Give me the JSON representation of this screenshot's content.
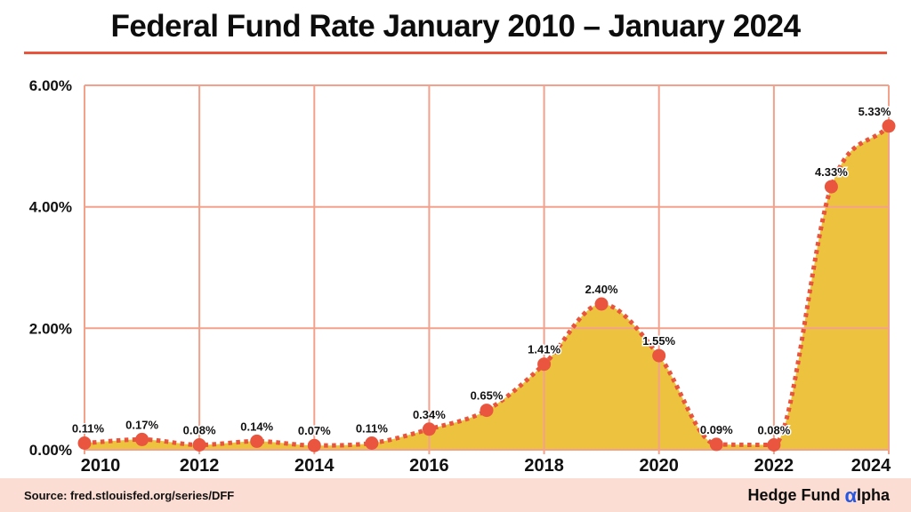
{
  "page": {
    "title": "Federal Fund Rate January 2010 – January 2024"
  },
  "footer": {
    "source": "Source: fred.stlouisfed.org/series/DFF",
    "logo_prefix": "Hedge Fund",
    "logo_alpha": "α",
    "logo_suffix": "lpha"
  },
  "colors": {
    "accent": "#E8543C",
    "marker": "#E9553E",
    "area_fill": "#ECC23E",
    "grid": "#F4A18C",
    "footer_bg": "#FBDDD3",
    "alpha_blue": "#2757E0",
    "text": "#111111"
  },
  "chart_data": {
    "type": "area",
    "title": "Federal Fund Rate January 2010 – January 2024",
    "x": [
      2010,
      2011,
      2012,
      2013,
      2014,
      2015,
      2016,
      2017,
      2018,
      2019,
      2020,
      2021,
      2022,
      2023,
      2024
    ],
    "values": [
      0.11,
      0.17,
      0.08,
      0.14,
      0.07,
      0.11,
      0.34,
      0.65,
      1.41,
      2.4,
      1.55,
      0.09,
      0.08,
      4.33,
      5.33
    ],
    "point_labels": [
      "0.11%",
      "0.17%",
      "0.08%",
      "0.14%",
      "0.07%",
      "0.11%",
      "0.34%",
      "0.65%",
      "1.41%",
      "2.40%",
      "1.55%",
      "0.09%",
      "0.08%",
      "4.33%",
      "5.33%"
    ],
    "x_ticks": [
      2010,
      2012,
      2014,
      2016,
      2018,
      2020,
      2022,
      2024
    ],
    "y_ticks": [
      {
        "value": 6,
        "label": "6.00%"
      },
      {
        "value": 4,
        "label": "4.00%"
      },
      {
        "value": 2,
        "label": "2.00%"
      },
      {
        "value": 0,
        "label": "0.00%"
      }
    ],
    "xlim": [
      2010,
      2024
    ],
    "ylim": [
      0,
      6
    ],
    "grid": true,
    "line_style": "dotted",
    "legend": "none",
    "source": "fred.stlouisfed.org/series/DFF"
  }
}
